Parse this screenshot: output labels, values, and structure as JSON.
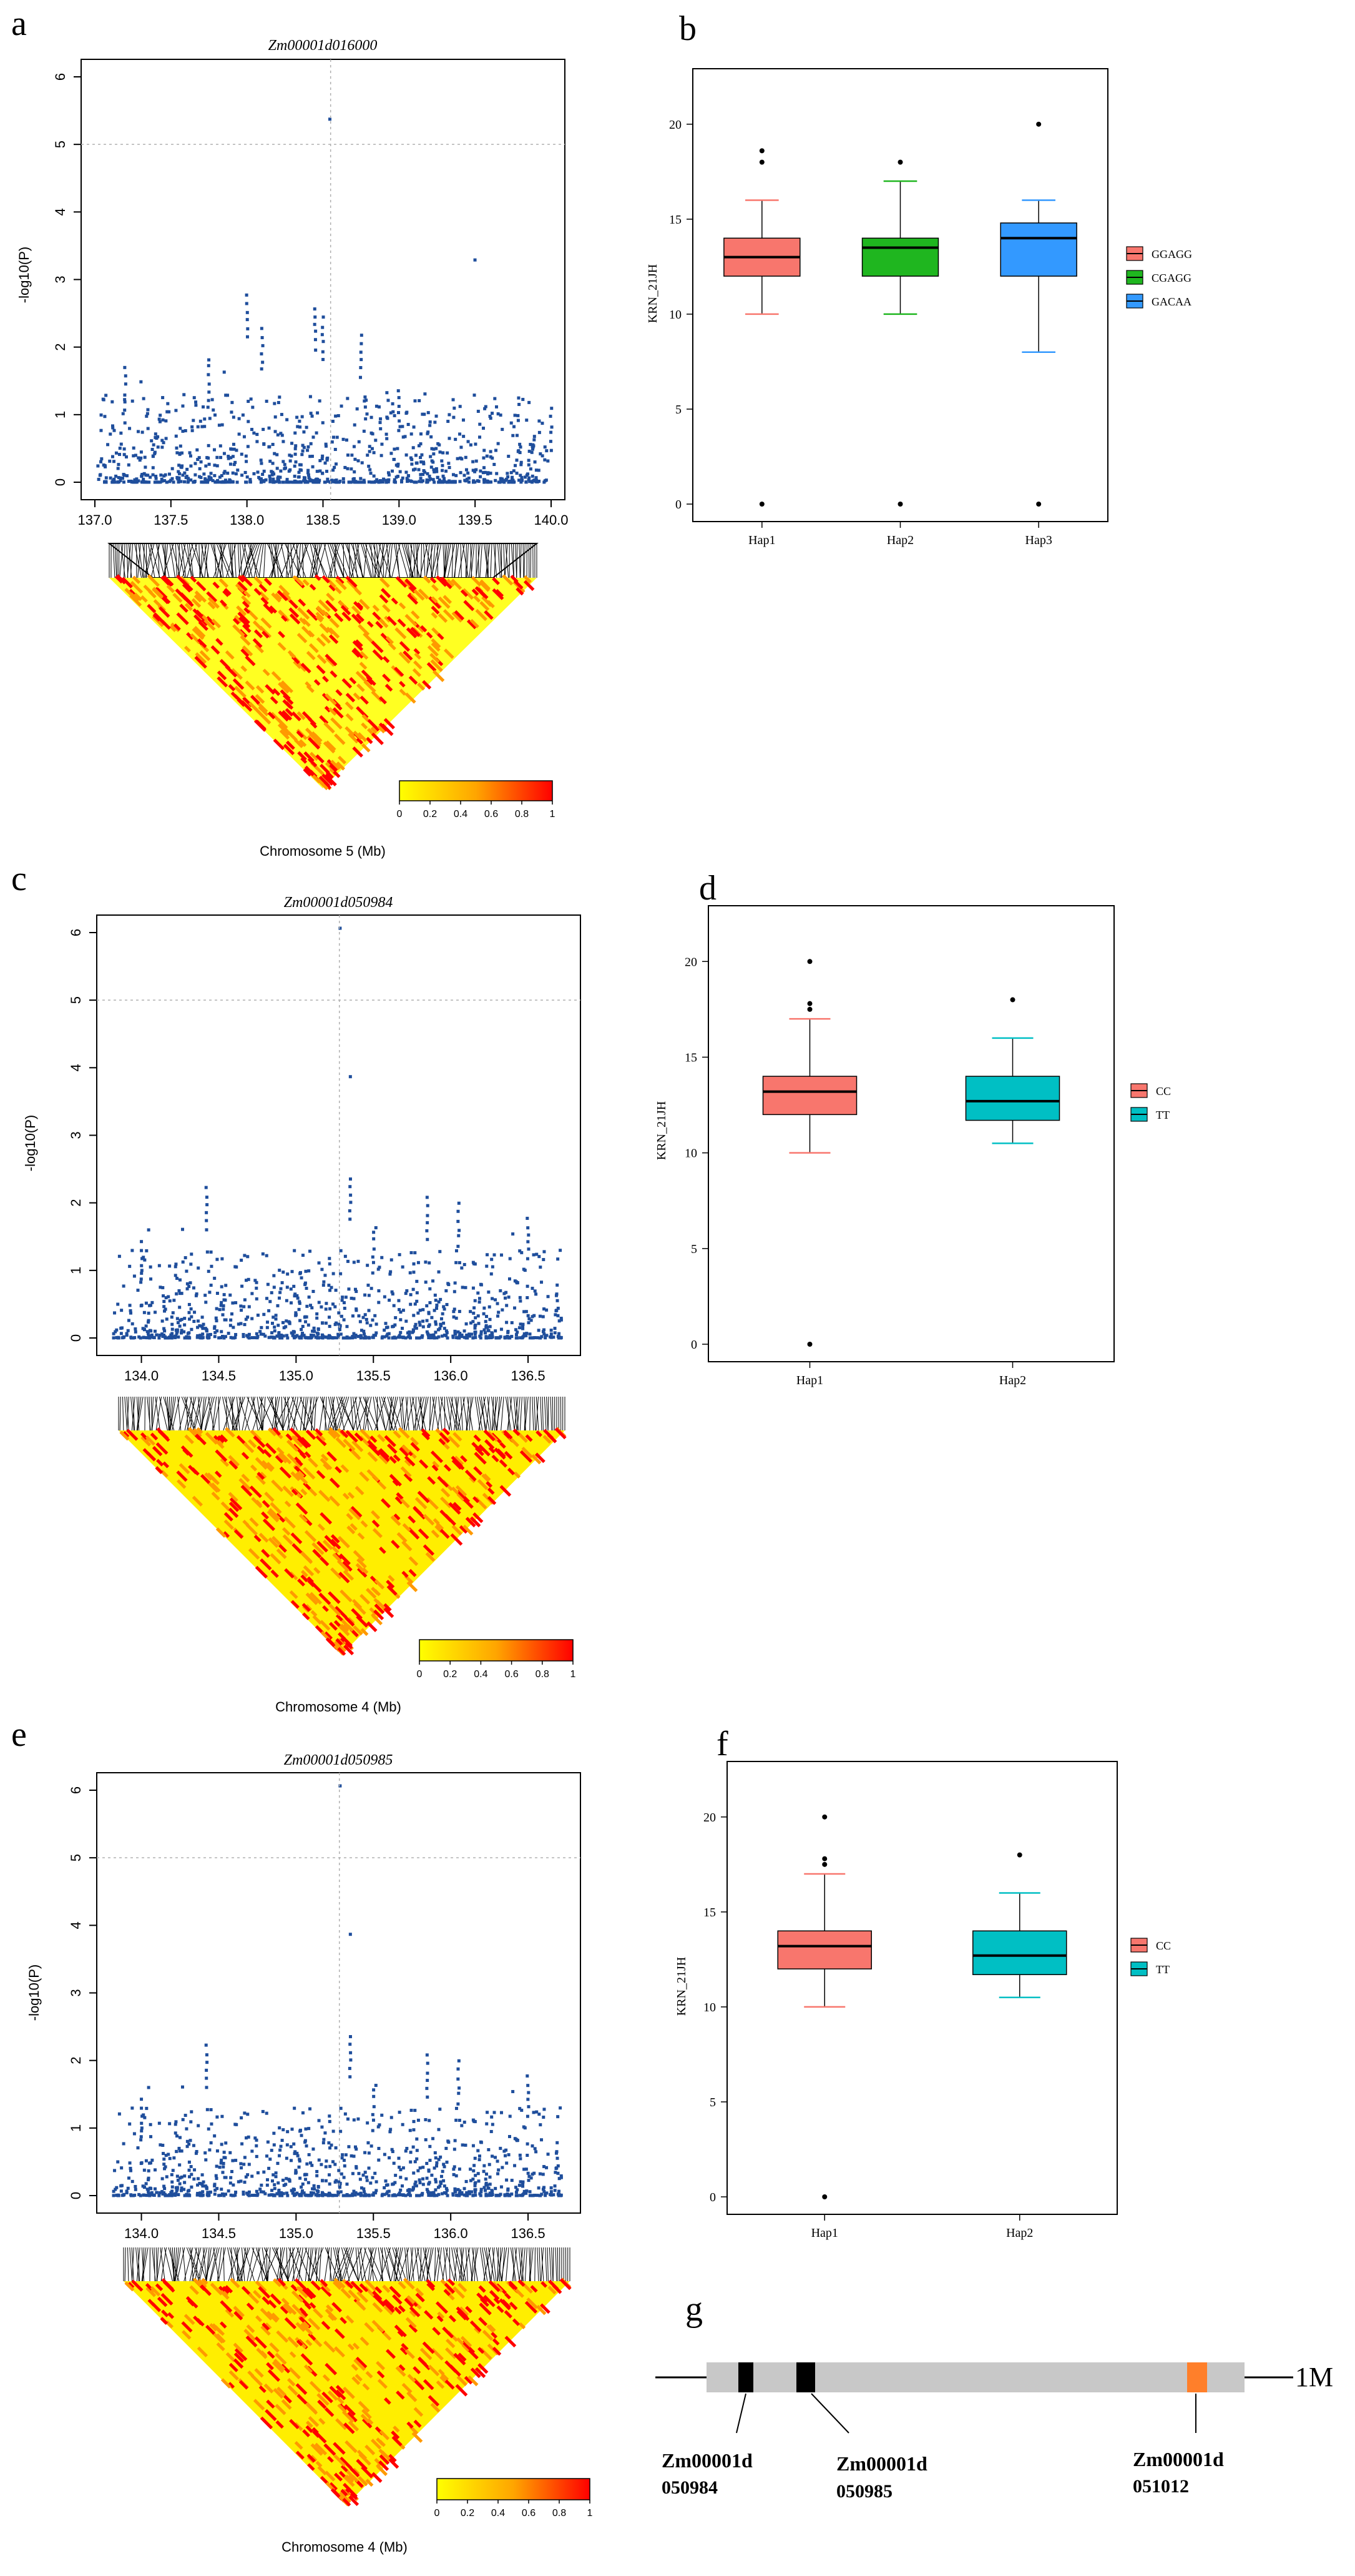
{
  "colors": {
    "manhattan_point": "#1f4e9c",
    "threshold_line": "#b0b0b0",
    "ld_low": "#ffff00",
    "ld_mid": "#ff9900",
    "ld_high": "#ff0000",
    "hap_red": "#f8766d",
    "hap_green": "#1fb61f",
    "hap_blue": "#3399ff",
    "hap_teal": "#00bfc4",
    "gene_bar": "#c8c8c8",
    "gene_black": "#000000",
    "gene_orange": "#ff7f2a"
  },
  "panels": {
    "a": {
      "label": "a",
      "title": "Zm00001d016000",
      "ylabel": "-log10(P)",
      "xlabel": "Chromosome 5 (Mb)",
      "yticks": [
        "0",
        "1",
        "2",
        "3",
        "4",
        "5",
        "6"
      ],
      "xticks": [
        "137.0",
        "137.5",
        "138.0",
        "138.5",
        "139.0",
        "139.5",
        "140.0"
      ],
      "xlim": [
        137.0,
        140.0
      ],
      "ylim": [
        0,
        6
      ],
      "lead_snp": {
        "x": 138.55,
        "y": 5.4
      },
      "colorbar_ticks": [
        "0",
        "0.2",
        "0.4",
        "0.6",
        "0.8",
        "1"
      ]
    },
    "b": {
      "label": "b",
      "ylabel": "KRN_21JH",
      "yticks": [
        "0",
        "5",
        "10",
        "15",
        "20"
      ],
      "categories": [
        "Hap1",
        "Hap2",
        "Hap3"
      ],
      "legend": [
        "GGAGG",
        "CGAGG",
        "GACAA"
      ]
    },
    "c": {
      "label": "c",
      "title": "Zm00001d050984",
      "ylabel": "-log10(P)",
      "xlabel": "Chromosome 4 (Mb)",
      "yticks": [
        "0",
        "1",
        "2",
        "3",
        "4",
        "5",
        "6"
      ],
      "xticks": [
        "134.0",
        "134.5",
        "135.0",
        "135.5",
        "136.0",
        "136.5"
      ],
      "xlim": [
        133.8,
        136.75
      ],
      "ylim": [
        0,
        6
      ],
      "lead_snp": {
        "x": 135.28,
        "y": 6.1
      },
      "colorbar_ticks": [
        "0",
        "0.2",
        "0.4",
        "0.6",
        "0.8",
        "1"
      ]
    },
    "d": {
      "label": "d",
      "ylabel": "KRN_21JH",
      "yticks": [
        "0",
        "5",
        "10",
        "15",
        "20"
      ],
      "categories": [
        "Hap1",
        "Hap2"
      ],
      "legend": [
        "CC",
        "TT"
      ]
    },
    "e": {
      "label": "e",
      "title": "Zm00001d050985",
      "ylabel": "-log10(P)",
      "xlabel": "Chromosome 4 (Mb)",
      "yticks": [
        "0",
        "1",
        "2",
        "3",
        "4",
        "5",
        "6"
      ],
      "xticks": [
        "134.0",
        "134.5",
        "135.0",
        "135.5",
        "136.0",
        "136.5"
      ],
      "xlim": [
        133.8,
        136.75
      ],
      "ylim": [
        0,
        6
      ],
      "lead_snp": {
        "x": 135.28,
        "y": 6.1
      },
      "colorbar_ticks": [
        "0",
        "0.2",
        "0.4",
        "0.6",
        "0.8",
        "1"
      ]
    },
    "f": {
      "label": "f",
      "ylabel": "KRN_21JH",
      "yticks": [
        "0",
        "5",
        "10",
        "15",
        "20"
      ],
      "categories": [
        "Hap1",
        "Hap2"
      ],
      "legend": [
        "CC",
        "TT"
      ]
    },
    "g": {
      "label": "g",
      "scale_label": "1M",
      "genes": [
        {
          "line1": "Zm00001d",
          "line2": "050984"
        },
        {
          "line1": "Zm00001d",
          "line2": "050985"
        },
        {
          "line1": "Zm00001d",
          "line2": "051012"
        }
      ]
    }
  },
  "chart_data": [
    {
      "type": "scatter",
      "panel": "a",
      "title": "Zm00001d016000",
      "xlabel": "Chromosome 5 (Mb)",
      "ylabel": "-log10(P)",
      "xlim": [
        137.0,
        140.0
      ],
      "ylim": [
        0,
        6
      ],
      "threshold": 5,
      "points": [
        [
          138.55,
          5.4
        ],
        [
          139.5,
          3.3
        ],
        [
          138.0,
          2.8
        ],
        [
          138.45,
          2.6
        ],
        [
          138.5,
          2.45
        ],
        [
          138.75,
          2.2
        ],
        [
          138.1,
          2.3
        ],
        [
          137.75,
          1.85
        ],
        [
          137.2,
          1.7
        ],
        [
          139.0,
          1.4
        ],
        [
          140.0,
          1.1
        ]
      ]
    },
    {
      "type": "box",
      "panel": "b",
      "ylabel": "KRN_21JH",
      "ylim": [
        0,
        22
      ],
      "categories": [
        "Hap1",
        "Hap2",
        "Hap3"
      ],
      "series": [
        {
          "name": "GGAGG",
          "min": 10,
          "q1": 12,
          "median": 13,
          "q3": 14,
          "max": 16,
          "outliers": [
            0,
            18,
            18.6
          ]
        },
        {
          "name": "CGAGG",
          "min": 10,
          "q1": 12,
          "median": 13.5,
          "q3": 14,
          "max": 17,
          "outliers": [
            0,
            18
          ]
        },
        {
          "name": "GACAA",
          "min": 8,
          "q1": 12,
          "median": 14,
          "q3": 14.8,
          "max": 16,
          "outliers": [
            0,
            20
          ]
        }
      ]
    },
    {
      "type": "scatter",
      "panel": "c",
      "title": "Zm00001d050984",
      "xlabel": "Chromosome 4 (Mb)",
      "ylabel": "-log10(P)",
      "xlim": [
        133.8,
        136.75
      ],
      "ylim": [
        0,
        6
      ],
      "threshold": 5,
      "points": [
        [
          135.28,
          6.1
        ],
        [
          135.35,
          3.9
        ],
        [
          135.35,
          2.4
        ],
        [
          134.42,
          2.25
        ],
        [
          135.5,
          1.6
        ],
        [
          135.85,
          2.1
        ],
        [
          136.05,
          2.0
        ],
        [
          136.5,
          1.8
        ],
        [
          134.0,
          1.45
        ]
      ]
    },
    {
      "type": "box",
      "panel": "d",
      "ylabel": "KRN_21JH",
      "ylim": [
        0,
        22
      ],
      "categories": [
        "Hap1",
        "Hap2"
      ],
      "series": [
        {
          "name": "CC",
          "min": 10,
          "q1": 12,
          "median": 13.2,
          "q3": 14,
          "max": 17,
          "outliers": [
            0,
            17.5,
            17.8,
            20
          ]
        },
        {
          "name": "TT",
          "min": 10.5,
          "q1": 11.7,
          "median": 12.7,
          "q3": 14,
          "max": 16,
          "outliers": [
            18
          ]
        }
      ]
    },
    {
      "type": "scatter",
      "panel": "e",
      "title": "Zm00001d050985",
      "xlabel": "Chromosome 4 (Mb)",
      "ylabel": "-log10(P)",
      "xlim": [
        133.8,
        136.75
      ],
      "ylim": [
        0,
        6
      ],
      "threshold": 5,
      "points": [
        [
          135.28,
          6.1
        ],
        [
          135.35,
          3.9
        ],
        [
          135.35,
          2.4
        ],
        [
          134.42,
          2.25
        ],
        [
          135.5,
          1.6
        ],
        [
          135.85,
          2.1
        ],
        [
          136.05,
          2.0
        ],
        [
          136.5,
          1.8
        ],
        [
          134.0,
          1.45
        ]
      ]
    },
    {
      "type": "box",
      "panel": "f",
      "ylabel": "KRN_21JH",
      "ylim": [
        0,
        22
      ],
      "categories": [
        "Hap1",
        "Hap2"
      ],
      "series": [
        {
          "name": "CC",
          "min": 10,
          "q1": 12,
          "median": 13.2,
          "q3": 14,
          "max": 17,
          "outliers": [
            0,
            17.5,
            17.8,
            20
          ]
        },
        {
          "name": "TT",
          "min": 10.5,
          "q1": 11.7,
          "median": 12.7,
          "q3": 14,
          "max": 16,
          "outliers": [
            18
          ]
        }
      ]
    }
  ]
}
